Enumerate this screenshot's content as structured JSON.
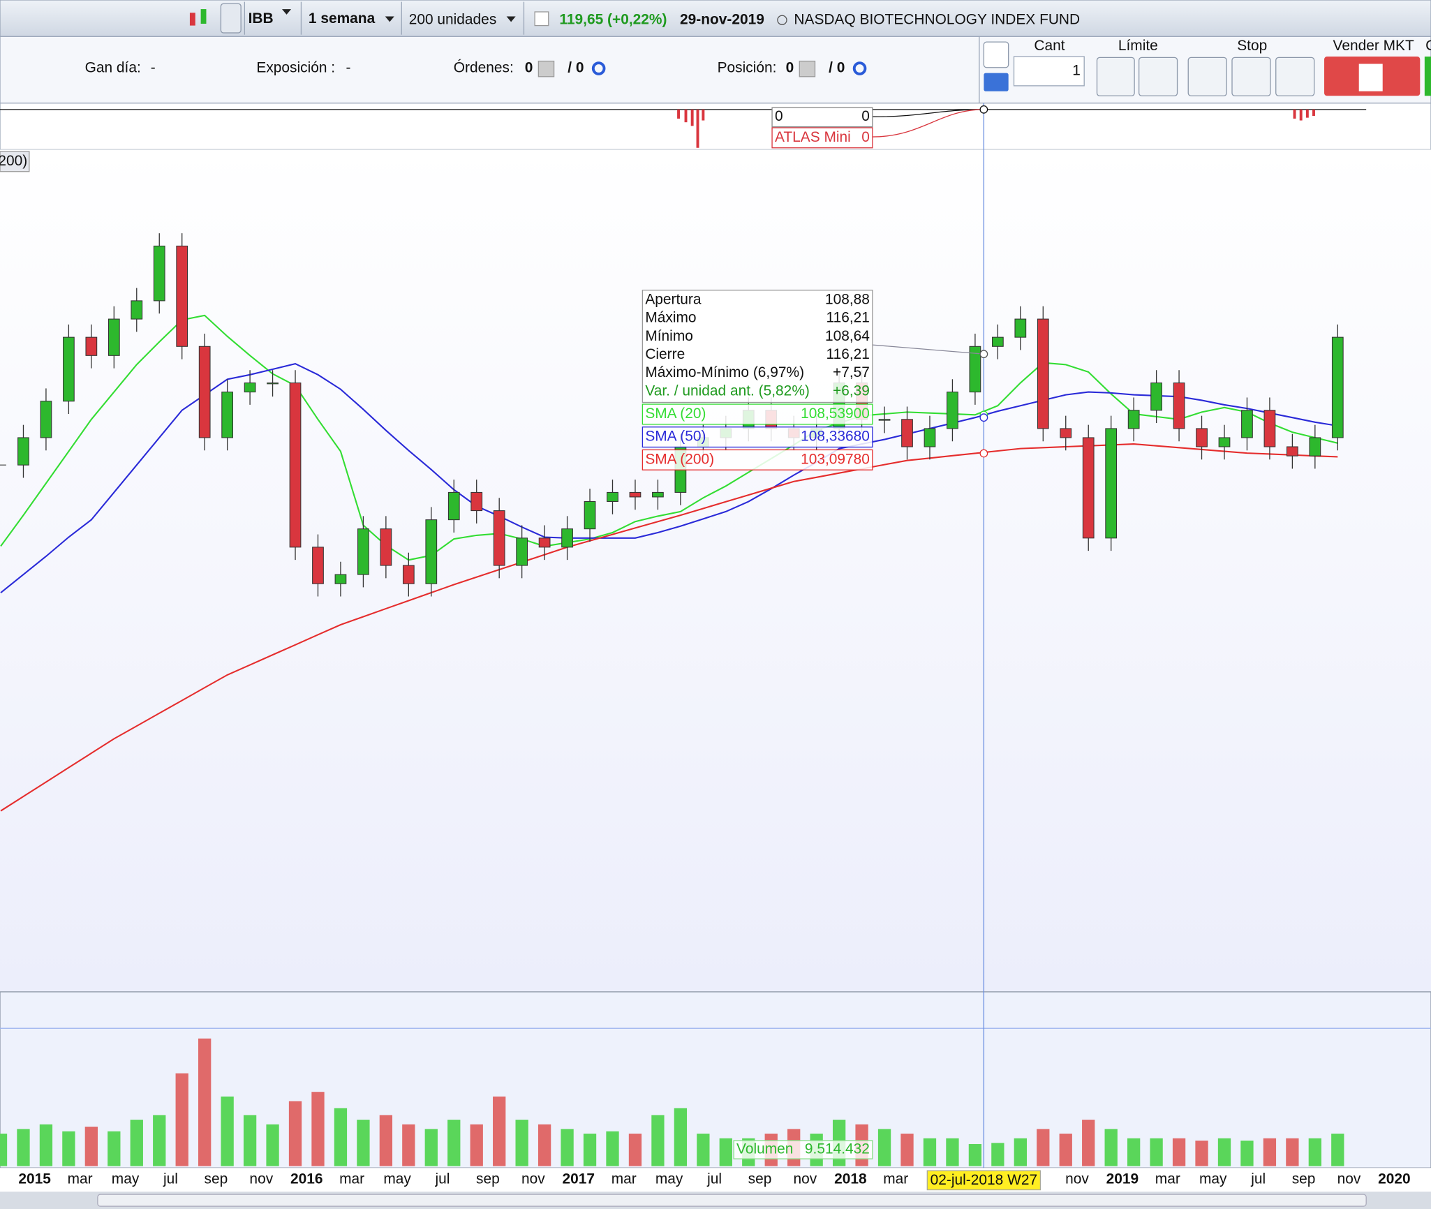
{
  "toolbar": {
    "symbol": "IBB",
    "timeframe": "1 semana",
    "quantity": "200 unidades",
    "price": "119,65 (+0,22%)",
    "date": "29-nov-2019",
    "instrument": "NASDAQ BIOTECHNOLOGY INDEX FUND"
  },
  "account": {
    "gain_label": "Gan día:",
    "gain": "-",
    "exposure_label": "Exposición :",
    "exposure": "-",
    "orders_label": "Órdenes:",
    "orders": "0",
    "orders_total": "/ 0",
    "position_label": "Posición:",
    "position": "0",
    "position_total": "/ 0"
  },
  "order_panel": {
    "qty_label": "Cant",
    "qty": "1",
    "limit_label": "Límite",
    "stop_label": "Stop",
    "sell_label": "Vender MKT",
    "buy_label": "C"
  },
  "indicator": {
    "value_left": "0",
    "value_right": "0",
    "name": "ATLAS Mini",
    "value": "0"
  },
  "chart_data": {
    "type": "candlestick",
    "legend_fragment": "200)",
    "x_labels": [
      "2015",
      "mar",
      "may",
      "jul",
      "sep",
      "nov",
      "2016",
      "mar",
      "may",
      "jul",
      "sep",
      "nov",
      "2017",
      "mar",
      "may",
      "jul",
      "sep",
      "nov",
      "2018",
      "mar",
      null,
      null,
      null,
      "nov",
      "2019",
      "mar",
      "may",
      "jul",
      "sep",
      "nov",
      "2020"
    ],
    "ylim": [
      32.3,
      143
    ],
    "up_color": "#2db82d",
    "down_color": "#d9363e",
    "close": [
      101.53,
      105.14,
      109.95,
      118.38,
      115.97,
      120.78,
      123.19,
      130.41,
      117.17,
      105.14,
      111.16,
      112.36,
      112.36,
      90.7,
      85.88,
      87.09,
      93.11,
      88.29,
      85.88,
      94.31,
      97.92,
      95.51,
      88.29,
      91.9,
      90.7,
      93.11,
      96.72,
      97.92,
      97.32,
      97.92,
      103.94,
      105.14,
      106.34,
      108.75,
      106.34,
      105.14,
      106.34,
      112.36,
      107.55,
      107.55,
      103.94,
      106.34,
      111.16,
      117.17,
      118.38,
      120.78,
      106.34,
      105.14,
      91.9,
      106.34,
      108.75,
      112.36,
      106.34,
      103.94,
      105.14,
      108.75,
      103.94,
      102.73,
      105.14,
      118.38
    ],
    "series": [
      {
        "name": "SMA (20)",
        "color": "#33dd33",
        "value_at_cursor": "108,53900",
        "values": [
          90.82,
          94.91,
          99.12,
          103.33,
          107.55,
          111.16,
          114.77,
          117.77,
          120.66,
          121.26,
          118.5,
          115.97,
          113.56,
          112.0,
          107.55,
          103.33,
          93.59,
          90.94,
          89.01,
          89.61,
          91.78,
          92.26,
          92.5,
          91.78,
          90.82,
          91.3,
          91.78,
          92.62,
          94.07,
          94.79,
          95.39,
          97.2,
          98.76,
          100.57,
          102.37,
          104.18,
          106.1,
          107.06,
          108.03,
          108.27,
          108.51,
          108.39,
          108.27,
          108.15,
          109.35,
          112.36,
          115.01,
          114.77,
          113.8,
          110.91,
          108.27,
          107.91,
          107.55,
          108.51,
          109.11,
          108.51,
          107.06,
          105.86,
          105.14,
          104.42
        ]
      },
      {
        "name": "SMA (50)",
        "color": "#2a2ad8",
        "value_at_cursor": "108,33680",
        "values": [
          84.68,
          87.09,
          89.49,
          92.02,
          94.31,
          97.92,
          101.53,
          105.14,
          108.75,
          110.79,
          112.84,
          113.44,
          114.16,
          114.89,
          113.44,
          111.52,
          108.87,
          106.1,
          103.45,
          100.93,
          98.28,
          96.11,
          94.79,
          93.35,
          92.02,
          91.9,
          91.9,
          91.9,
          91.9,
          92.62,
          93.47,
          94.43,
          95.39,
          96.71,
          98.4,
          100.2,
          101.89,
          103.69,
          104.3,
          104.9,
          105.62,
          106.34,
          107.06,
          107.79,
          108.63,
          109.35,
          110.07,
          110.79,
          111.16,
          111.04,
          110.79,
          110.67,
          110.55,
          110.07,
          109.47,
          108.99,
          108.39,
          107.79,
          107.18,
          106.7
        ]
      },
      {
        "name": "SMA (200)",
        "color": "#e52d2d",
        "value_at_cursor": "103,09780",
        "values": [
          55.92,
          57.82,
          59.72,
          61.63,
          63.53,
          65.43,
          67.11,
          68.8,
          70.48,
          72.17,
          73.85,
          75.17,
          76.5,
          77.82,
          79.15,
          80.47,
          81.53,
          82.59,
          83.64,
          84.7,
          85.76,
          86.75,
          87.74,
          88.72,
          89.71,
          90.7,
          91.54,
          92.38,
          93.23,
          94.07,
          94.91,
          95.8,
          96.69,
          97.58,
          98.47,
          99.36,
          99.91,
          100.47,
          101.02,
          101.58,
          102.13,
          102.44,
          102.76,
          103.07,
          103.39,
          103.7,
          103.82,
          103.94,
          104.06,
          104.18,
          104.3,
          104.06,
          103.82,
          103.58,
          103.34,
          103.1,
          102.98,
          102.86,
          102.73,
          102.61
        ]
      }
    ],
    "volume": {
      "name": "Volumen",
      "value_at_cursor": "9.514.432",
      "vlim": [
        0,
        70
      ],
      "values": [
        14,
        16,
        18,
        15,
        17,
        15,
        20,
        22,
        40,
        55,
        30,
        22,
        18,
        28,
        32,
        25,
        20,
        22,
        18,
        16,
        20,
        18,
        30,
        20,
        18,
        16,
        14,
        15,
        14,
        22,
        25,
        14,
        12,
        12,
        14,
        16,
        14,
        20,
        18,
        16,
        14,
        12,
        12,
        9.5,
        10,
        12,
        16,
        14,
        20,
        16,
        12,
        12,
        12,
        11,
        12,
        11,
        12,
        12,
        12,
        14
      ]
    },
    "tooltip": {
      "rows": [
        [
          "Apertura",
          "108,88"
        ],
        [
          "Máximo",
          "116,21"
        ],
        [
          "Mínimo",
          "108,64"
        ],
        [
          "Cierre",
          "116,21"
        ],
        [
          "Máximo-Mínimo (6,97%)",
          "+7,57"
        ],
        [
          "Var. / unidad ant. (5,82%)",
          "+6,39"
        ]
      ]
    },
    "cursor_label": "02-jul-2018 W27"
  }
}
